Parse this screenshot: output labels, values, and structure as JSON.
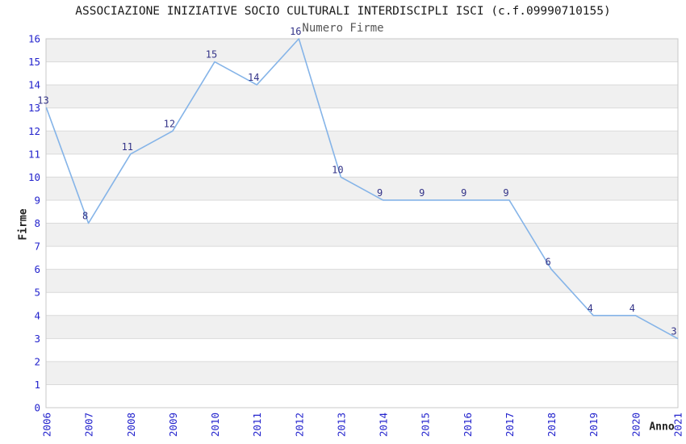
{
  "chart_data": {
    "type": "line",
    "title": "ASSOCIAZIONE INIZIATIVE SOCIO CULTURALI INTERDISCIPLI ISCI (c.f.09990710155)",
    "subtitle": "Numero Firme",
    "xlabel": "Anno",
    "ylabel": "Firme",
    "categories": [
      "2006",
      "2007",
      "2008",
      "2009",
      "2010",
      "2011",
      "2012",
      "2013",
      "2014",
      "2015",
      "2016",
      "2017",
      "2018",
      "2019",
      "2020",
      "2021"
    ],
    "values": [
      13,
      8,
      11,
      12,
      15,
      14,
      16,
      10,
      9,
      9,
      9,
      9,
      6,
      4,
      4,
      3
    ],
    "ylim": [
      0,
      16
    ],
    "y_tick_step": 1,
    "grid": "alternating-horizontal-bands",
    "legend": "none",
    "point_labels_shown": true,
    "colors": {
      "line": "#85b4e8",
      "point_label": "#333388",
      "tick_label": "#2323cd",
      "band": "#f0f0f0",
      "gridline": "#dadada",
      "border": "#c8c8c8",
      "title": "#1a1a1a",
      "subtitle": "#565656",
      "axis_label": "#222222",
      "background": "#ffffff"
    }
  }
}
